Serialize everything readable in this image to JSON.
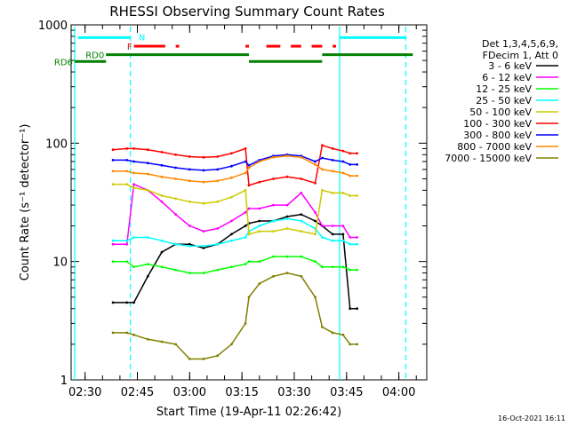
{
  "chart_data": {
    "type": "line",
    "title": "RHESSI Observing Summary Count Rates",
    "xlabel": "Start Time (19-Apr-11 02:26:42)",
    "ylabel": "Count Rate (s⁻¹ detector⁻¹)",
    "yscale": "log",
    "xlim": [
      "02:26",
      "04:08"
    ],
    "ylim": [
      1,
      1000
    ],
    "x_ticks": [
      "02:30",
      "02:45",
      "03:00",
      "03:15",
      "03:30",
      "03:45",
      "04:00"
    ],
    "y_ticks": [
      "1",
      "10",
      "100",
      "1000"
    ],
    "legend_header": [
      "Det 1,3,4,5,6,9,",
      "FDecim 1, Att 0"
    ],
    "legend_position": "right",
    "footer_date": "16-Oct-2021 16:11",
    "x": [
      "02:38",
      "02:42",
      "02:44",
      "02:48",
      "02:52",
      "02:56",
      "03:00",
      "03:04",
      "03:08",
      "03:12",
      "03:16",
      "03:17",
      "03:20",
      "03:24",
      "03:28",
      "03:32",
      "03:36",
      "03:38",
      "03:41",
      "03:44",
      "03:46",
      "03:48"
    ],
    "series": [
      {
        "name": "3 - 6 keV",
        "color": "#000000",
        "values": [
          4.5,
          4.5,
          4.5,
          7.5,
          12,
          14,
          14,
          13,
          14,
          17,
          20,
          21,
          22,
          22,
          24,
          25,
          22,
          20,
          17,
          17,
          4,
          4
        ]
      },
      {
        "name": "6 - 12 keV",
        "color": "#ff00ff",
        "values": [
          14,
          14,
          45,
          40,
          32,
          25,
          20,
          18,
          19,
          22,
          26,
          28,
          28,
          30,
          30,
          38,
          26,
          20,
          20,
          20,
          16,
          16
        ]
      },
      {
        "name": "12 - 25 keV",
        "color": "#00ff00",
        "values": [
          10,
          10,
          9,
          9.5,
          9,
          8.5,
          8,
          8,
          8.5,
          9,
          9.5,
          10,
          10,
          11,
          11,
          11,
          10,
          9,
          9,
          9,
          8.5,
          8.5
        ]
      },
      {
        "name": "25 - 50 keV",
        "color": "#00ffff",
        "values": [
          15,
          15,
          16,
          16,
          15,
          14,
          13.5,
          13.5,
          14,
          15,
          16,
          18,
          20,
          22,
          23,
          22,
          19,
          16,
          15,
          15,
          14,
          14
        ]
      },
      {
        "name": "50 - 100 keV",
        "color": "#cccc00",
        "values": [
          45,
          45,
          42,
          40,
          36,
          34,
          32,
          31,
          32,
          35,
          40,
          17,
          18,
          18,
          19,
          18,
          17,
          40,
          38,
          38,
          36,
          36
        ]
      },
      {
        "name": "100 - 300 keV",
        "color": "#ff0000",
        "values": [
          88,
          90,
          90,
          88,
          84,
          80,
          77,
          76,
          77,
          82,
          90,
          44,
          47,
          50,
          52,
          50,
          46,
          96,
          90,
          86,
          82,
          82
        ]
      },
      {
        "name": "300 - 800 keV",
        "color": "#0000ff",
        "values": [
          72,
          72,
          70,
          68,
          65,
          62,
          60,
          59,
          60,
          64,
          70,
          65,
          72,
          78,
          80,
          78,
          70,
          75,
          72,
          70,
          66,
          66
        ]
      },
      {
        "name": "800 - 7000 keV",
        "color": "#ff8800",
        "values": [
          58,
          58,
          56,
          55,
          52,
          50,
          48,
          47,
          48,
          51,
          56,
          62,
          70,
          76,
          78,
          76,
          66,
          60,
          58,
          56,
          53,
          53
        ]
      },
      {
        "name": "7000 - 15000 keV",
        "color": "#808000",
        "values": [
          2.5,
          2.5,
          2.4,
          2.2,
          2.1,
          2.0,
          1.5,
          1.5,
          1.6,
          2.0,
          3.0,
          5.0,
          6.5,
          7.5,
          8.0,
          7.5,
          5.0,
          2.8,
          2.5,
          2.4,
          2.0,
          2.0
        ]
      }
    ],
    "flag_bars": [
      {
        "label": "N",
        "color": "#00ffff",
        "level": 780,
        "spans": [
          [
            "02:28",
            "02:43"
          ],
          [
            "03:43",
            "04:02"
          ]
        ]
      },
      {
        "label": "F",
        "color": "#ff0000",
        "level": 660,
        "spans": [
          [
            "02:44",
            "02:53"
          ],
          [
            "02:56",
            "02:57"
          ],
          [
            "03:16",
            "03:17"
          ],
          [
            "03:22",
            "03:26"
          ],
          [
            "03:29",
            "03:32"
          ],
          [
            "03:35",
            "03:38"
          ],
          [
            "03:41",
            "03:42"
          ]
        ]
      },
      {
        "label": "RD0",
        "color": "#008000",
        "level": 560,
        "spans": [
          [
            "02:36",
            "03:17"
          ],
          [
            "03:38",
            "04:04"
          ]
        ]
      },
      {
        "label": "RD6",
        "color": "#008000",
        "level": 490,
        "spans": [
          [
            "02:27",
            "02:36"
          ],
          [
            "03:17",
            "03:38"
          ]
        ]
      }
    ],
    "vertical_markers": [
      {
        "style": "solid",
        "color": "#00ffff",
        "times": [
          "02:27",
          "03:43"
        ]
      },
      {
        "style": "dashed",
        "color": "#00ffff",
        "times": [
          "02:43",
          "04:02"
        ]
      }
    ]
  }
}
